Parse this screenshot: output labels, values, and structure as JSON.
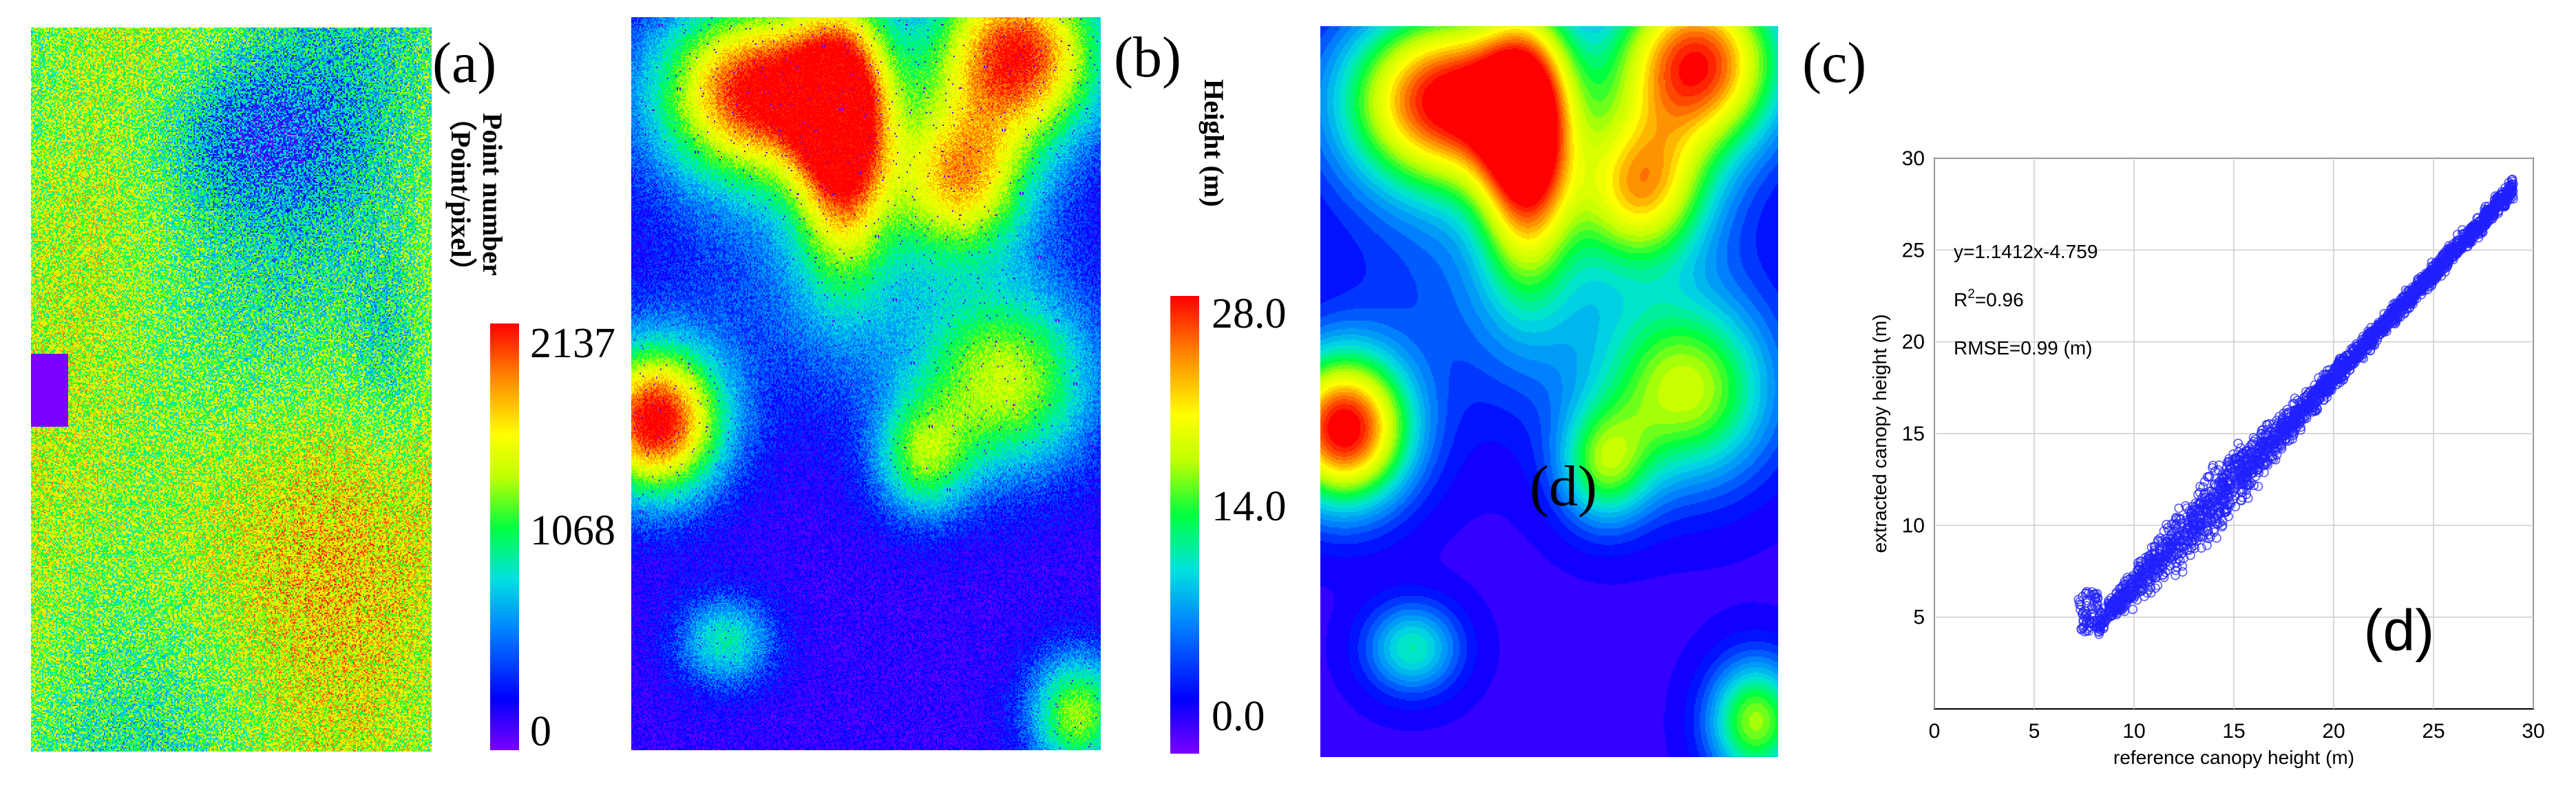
{
  "labels": {
    "panel_a": "(a)",
    "panel_b": "(b)",
    "panel_c": "(c)",
    "panel_d_map": "(d)",
    "panel_d_plot": "(d)"
  },
  "colorbar_a": {
    "title_line1": "Point number",
    "title_line2": "（Point/pixel）",
    "ticks": [
      "2137",
      "1068",
      "0"
    ]
  },
  "colorbar_b": {
    "title": "Height (m)",
    "ticks": [
      "28.0",
      "14.0",
      "0.0"
    ]
  },
  "colors": {
    "scatter_marker": "#2020ff",
    "colormap": [
      "#7a00ff",
      "#0000ff",
      "#0080ff",
      "#00e0e0",
      "#00ff40",
      "#c0ff00",
      "#ffff00",
      "#ff8000",
      "#ff0000"
    ]
  },
  "chart_data": {
    "type": "scatter",
    "title": "",
    "xlabel": "reference canopy height (m)",
    "ylabel": "extracted canopy height (m)",
    "xlim": [
      0,
      30
    ],
    "ylim": [
      0,
      30
    ],
    "xticks": [
      0,
      5,
      10,
      15,
      20,
      25,
      30
    ],
    "yticks": [
      5,
      10,
      15,
      20,
      25,
      30
    ],
    "grid": true,
    "annotations": {
      "equation": "y=1.1412x-4.759",
      "r2_prefix": "R",
      "r2_sup": "2",
      "r2_value": "=0.96",
      "rmse": "RMSE=0.99 (m)"
    },
    "regression": {
      "slope": 1.1412,
      "intercept": -4.759
    },
    "x_range_points": [
      7.2,
      29
    ]
  }
}
